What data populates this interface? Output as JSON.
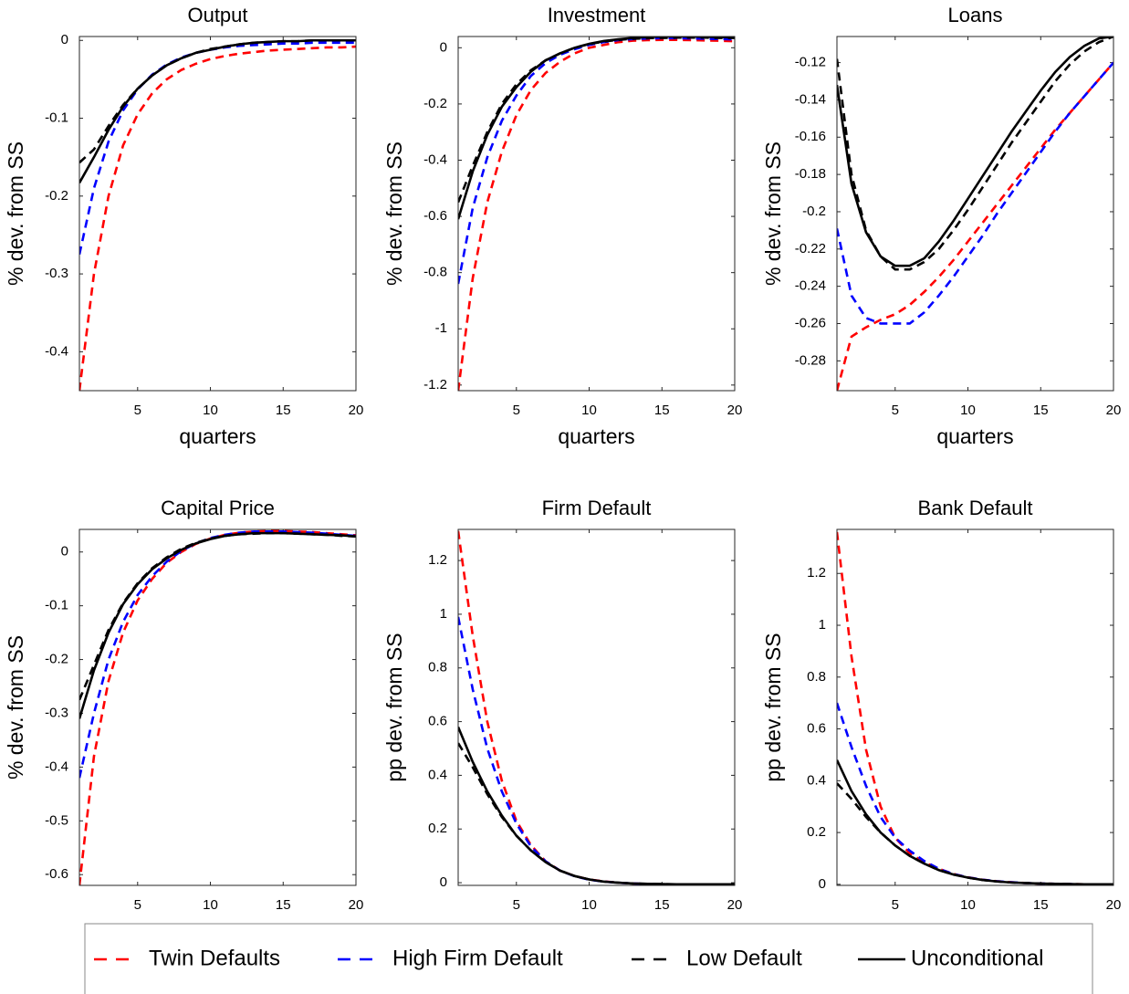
{
  "chart_data": [
    {
      "type": "line",
      "title": "Output",
      "ylabel": "% dev. from SS",
      "xlabel": "quarters",
      "x": [
        1,
        2,
        3,
        4,
        5,
        6,
        7,
        8,
        9,
        10,
        11,
        12,
        13,
        14,
        15,
        16,
        17,
        18,
        19,
        20
      ],
      "xlim": [
        1,
        20
      ],
      "xticks": [
        5,
        10,
        15,
        20
      ],
      "ylim": [
        -0.45,
        0.005
      ],
      "yticks": [
        -0.4,
        -0.3,
        -0.2,
        -0.1,
        0
      ],
      "series": [
        {
          "values": [
            -0.45,
            -0.3,
            -0.2,
            -0.135,
            -0.095,
            -0.068,
            -0.05,
            -0.038,
            -0.03,
            -0.024,
            -0.02,
            -0.017,
            -0.015,
            -0.013,
            -0.012,
            -0.011,
            -0.01,
            -0.009,
            -0.009,
            -0.008
          ]
        },
        {
          "values": [
            -0.275,
            -0.19,
            -0.13,
            -0.09,
            -0.063,
            -0.044,
            -0.031,
            -0.022,
            -0.016,
            -0.012,
            -0.009,
            -0.007,
            -0.006,
            -0.005,
            -0.004,
            -0.004,
            -0.003,
            -0.003,
            -0.003,
            -0.003
          ]
        },
        {
          "values": [
            -0.157,
            -0.14,
            -0.11,
            -0.083,
            -0.062,
            -0.045,
            -0.032,
            -0.023,
            -0.016,
            -0.011,
            -0.008,
            -0.005,
            -0.003,
            -0.002,
            -0.001,
            -0.001,
            0,
            0,
            0,
            0
          ]
        },
        {
          "values": [
            -0.183,
            -0.15,
            -0.115,
            -0.085,
            -0.062,
            -0.045,
            -0.032,
            -0.023,
            -0.016,
            -0.012,
            -0.008,
            -0.005,
            -0.003,
            -0.002,
            -0.001,
            -0.001,
            0,
            0,
            0,
            0
          ]
        }
      ]
    },
    {
      "type": "line",
      "title": "Investment",
      "ylabel": "% dev. from SS",
      "xlabel": "quarters",
      "x": [
        1,
        2,
        3,
        4,
        5,
        6,
        7,
        8,
        9,
        10,
        11,
        12,
        13,
        14,
        15,
        16,
        17,
        18,
        19,
        20
      ],
      "xlim": [
        1,
        20
      ],
      "xticks": [
        5,
        10,
        15,
        20
      ],
      "ylim": [
        -1.22,
        0.04
      ],
      "yticks": [
        -1.2,
        -1,
        -0.8,
        -0.6,
        -0.4,
        -0.2,
        0
      ],
      "series": [
        {
          "values": [
            -1.22,
            -0.82,
            -0.55,
            -0.37,
            -0.24,
            -0.15,
            -0.09,
            -0.05,
            -0.02,
            0,
            0.01,
            0.02,
            0.025,
            0.027,
            0.028,
            0.028,
            0.027,
            0.026,
            0.025,
            0.023
          ]
        },
        {
          "values": [
            -0.84,
            -0.57,
            -0.39,
            -0.26,
            -0.17,
            -0.1,
            -0.055,
            -0.025,
            -0.005,
            0.01,
            0.02,
            0.027,
            0.031,
            0.033,
            0.034,
            0.034,
            0.033,
            0.032,
            0.031,
            0.03
          ]
        },
        {
          "values": [
            -0.55,
            -0.42,
            -0.3,
            -0.2,
            -0.13,
            -0.08,
            -0.045,
            -0.02,
            0,
            0.013,
            0.022,
            0.028,
            0.032,
            0.034,
            0.035,
            0.036,
            0.036,
            0.036,
            0.035,
            0.035
          ]
        },
        {
          "values": [
            -0.61,
            -0.44,
            -0.31,
            -0.21,
            -0.14,
            -0.085,
            -0.045,
            -0.02,
            0,
            0.014,
            0.024,
            0.03,
            0.035,
            0.038,
            0.04,
            0.04,
            0.04,
            0.039,
            0.038,
            0.037
          ]
        }
      ]
    },
    {
      "type": "line",
      "title": "Loans",
      "ylabel": "% dev. from SS",
      "xlabel": "quarters",
      "x": [
        1,
        2,
        3,
        4,
        5,
        6,
        7,
        8,
        9,
        10,
        11,
        12,
        13,
        14,
        15,
        16,
        17,
        18,
        19,
        20
      ],
      "xlim": [
        1,
        20
      ],
      "xticks": [
        5,
        10,
        15,
        20
      ],
      "ylim": [
        -0.296,
        -0.106
      ],
      "yticks": [
        -0.28,
        -0.26,
        -0.24,
        -0.22,
        -0.2,
        -0.18,
        -0.16,
        -0.14,
        -0.12
      ],
      "series": [
        {
          "values": [
            -0.296,
            -0.267,
            -0.262,
            -0.258,
            -0.255,
            -0.25,
            -0.243,
            -0.235,
            -0.226,
            -0.216,
            -0.206,
            -0.196,
            -0.186,
            -0.176,
            -0.166,
            -0.156,
            -0.147,
            -0.138,
            -0.129,
            -0.12
          ]
        },
        {
          "values": [
            -0.209,
            -0.245,
            -0.257,
            -0.26,
            -0.26,
            -0.26,
            -0.254,
            -0.245,
            -0.235,
            -0.224,
            -0.213,
            -0.201,
            -0.19,
            -0.179,
            -0.168,
            -0.157,
            -0.147,
            -0.138,
            -0.129,
            -0.12
          ]
        },
        {
          "values": [
            -0.118,
            -0.18,
            -0.21,
            -0.224,
            -0.231,
            -0.231,
            -0.227,
            -0.22,
            -0.21,
            -0.199,
            -0.187,
            -0.175,
            -0.163,
            -0.152,
            -0.141,
            -0.13,
            -0.121,
            -0.114,
            -0.109,
            -0.106
          ]
        },
        {
          "values": [
            -0.132,
            -0.185,
            -0.211,
            -0.224,
            -0.229,
            -0.229,
            -0.225,
            -0.216,
            -0.205,
            -0.193,
            -0.181,
            -0.169,
            -0.157,
            -0.146,
            -0.135,
            -0.125,
            -0.117,
            -0.111,
            -0.107,
            -0.106
          ]
        }
      ]
    },
    {
      "type": "line",
      "title": "Capital Price",
      "ylabel": "% dev. from SS",
      "x": [
        1,
        2,
        3,
        4,
        5,
        6,
        7,
        8,
        9,
        10,
        11,
        12,
        13,
        14,
        15,
        16,
        17,
        18,
        19,
        20
      ],
      "xlim": [
        1,
        20
      ],
      "xticks": [
        5,
        10,
        15,
        20
      ],
      "ylim": [
        -0.62,
        0.042
      ],
      "yticks": [
        -0.6,
        -0.5,
        -0.4,
        -0.3,
        -0.2,
        -0.1,
        0
      ],
      "series": [
        {
          "values": [
            -0.62,
            -0.38,
            -0.24,
            -0.15,
            -0.09,
            -0.05,
            -0.02,
            0,
            0.015,
            0.025,
            0.032,
            0.036,
            0.038,
            0.039,
            0.039,
            0.038,
            0.037,
            0.035,
            0.033,
            0.031
          ]
        },
        {
          "values": [
            -0.42,
            -0.3,
            -0.2,
            -0.13,
            -0.08,
            -0.045,
            -0.018,
            0.002,
            0.016,
            0.026,
            0.032,
            0.036,
            0.038,
            0.038,
            0.038,
            0.037,
            0.036,
            0.034,
            0.032,
            0.03
          ]
        },
        {
          "values": [
            -0.275,
            -0.21,
            -0.145,
            -0.095,
            -0.058,
            -0.03,
            -0.01,
            0.006,
            0.017,
            0.025,
            0.03,
            0.033,
            0.034,
            0.035,
            0.035,
            0.034,
            0.033,
            0.032,
            0.03,
            0.029
          ]
        },
        {
          "values": [
            -0.31,
            -0.22,
            -0.15,
            -0.097,
            -0.06,
            -0.032,
            -0.012,
            0.004,
            0.016,
            0.024,
            0.03,
            0.033,
            0.035,
            0.035,
            0.035,
            0.034,
            0.033,
            0.032,
            0.031,
            0.029
          ]
        }
      ]
    },
    {
      "type": "line",
      "title": "Firm Default",
      "ylabel": "pp dev. from SS",
      "x": [
        1,
        2,
        3,
        4,
        5,
        6,
        7,
        8,
        9,
        10,
        11,
        12,
        13,
        14,
        15,
        16,
        17,
        18,
        19,
        20
      ],
      "xlim": [
        1,
        20
      ],
      "xticks": [
        5,
        10,
        15,
        20
      ],
      "ylim": [
        -0.01,
        1.316
      ],
      "yticks": [
        0,
        0.2,
        0.4,
        0.6,
        0.8,
        1,
        1.2
      ],
      "series": [
        {
          "values": [
            1.31,
            0.92,
            0.6,
            0.38,
            0.23,
            0.14,
            0.08,
            0.045,
            0.025,
            0.012,
            0.005,
            0,
            -0.003,
            -0.005,
            -0.006,
            -0.007,
            -0.007,
            -0.007,
            -0.007,
            -0.007
          ]
        },
        {
          "values": [
            0.99,
            0.72,
            0.5,
            0.34,
            0.22,
            0.135,
            0.08,
            0.045,
            0.024,
            0.011,
            0.004,
            0,
            -0.003,
            -0.005,
            -0.006,
            -0.007,
            -0.007,
            -0.007,
            -0.007,
            -0.007
          ]
        },
        {
          "values": [
            0.52,
            0.43,
            0.33,
            0.245,
            0.175,
            0.12,
            0.077,
            0.045,
            0.025,
            0.012,
            0.004,
            0,
            -0.003,
            -0.004,
            -0.005,
            -0.006,
            -0.006,
            -0.006,
            -0.006,
            -0.006
          ]
        },
        {
          "values": [
            0.58,
            0.45,
            0.34,
            0.25,
            0.175,
            0.12,
            0.077,
            0.045,
            0.025,
            0.012,
            0.004,
            0,
            -0.003,
            -0.004,
            -0.005,
            -0.006,
            -0.006,
            -0.006,
            -0.006,
            -0.006
          ]
        }
      ]
    },
    {
      "type": "line",
      "title": "Bank Default",
      "ylabel": "pp dev. from SS",
      "x": [
        1,
        2,
        3,
        4,
        5,
        6,
        7,
        8,
        9,
        10,
        11,
        12,
        13,
        14,
        15,
        16,
        17,
        18,
        19,
        20
      ],
      "xlim": [
        1,
        20
      ],
      "xticks": [
        5,
        10,
        15,
        20
      ],
      "ylim": [
        -0.004,
        1.37
      ],
      "yticks": [
        0,
        0.2,
        0.4,
        0.6,
        0.8,
        1,
        1.2
      ],
      "series": [
        {
          "values": [
            1.36,
            0.88,
            0.52,
            0.3,
            0.18,
            0.12,
            0.085,
            0.06,
            0.04,
            0.027,
            0.018,
            0.012,
            0.008,
            0.005,
            0.003,
            0.002,
            0.001,
            0,
            0,
            0
          ]
        },
        {
          "values": [
            0.7,
            0.53,
            0.38,
            0.26,
            0.18,
            0.13,
            0.09,
            0.06,
            0.04,
            0.027,
            0.018,
            0.012,
            0.008,
            0.005,
            0.003,
            0.002,
            0.001,
            0,
            0,
            0
          ]
        },
        {
          "values": [
            0.39,
            0.33,
            0.26,
            0.2,
            0.15,
            0.11,
            0.08,
            0.055,
            0.038,
            0.026,
            0.017,
            0.011,
            0.007,
            0.005,
            0.003,
            0.002,
            0.001,
            0,
            0,
            0
          ]
        },
        {
          "values": [
            0.48,
            0.36,
            0.27,
            0.2,
            0.15,
            0.11,
            0.08,
            0.055,
            0.038,
            0.026,
            0.017,
            0.011,
            0.007,
            0.005,
            0.003,
            0.002,
            0.001,
            0,
            0,
            0
          ]
        }
      ]
    }
  ],
  "legend": [
    {
      "name": "Twin Defaults",
      "color": "#ff0000",
      "dashed": true
    },
    {
      "name": "High Firm Default",
      "color": "#0000ff",
      "dashed": true
    },
    {
      "name": "Low Default",
      "color": "#000000",
      "dashed": true
    },
    {
      "name": "Unconditional",
      "color": "#000000",
      "dashed": false
    }
  ]
}
